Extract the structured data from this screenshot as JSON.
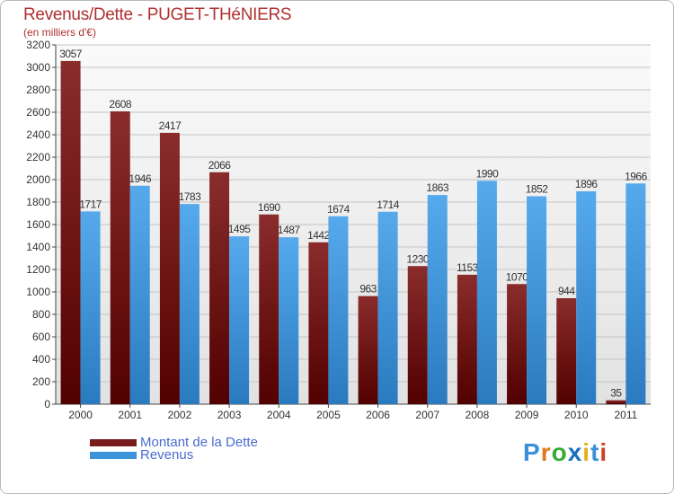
{
  "chart_data": {
    "type": "bar",
    "title": "Revenus/Dette - PUGET-THéNIERS",
    "subtitle": "(en milliers d'€)",
    "categories": [
      "2000",
      "2001",
      "2002",
      "2003",
      "2004",
      "2005",
      "2006",
      "2007",
      "2008",
      "2009",
      "2010",
      "2011"
    ],
    "series": [
      {
        "name": "Montant de la Dette",
        "color": "#7a1c1c",
        "values": [
          3057,
          2608,
          2417,
          2066,
          1690,
          1442,
          963,
          1230,
          1153,
          1070,
          944,
          35
        ]
      },
      {
        "name": "Revenus",
        "color": "#3e94d8",
        "values": [
          1717,
          1946,
          1783,
          1495,
          1487,
          1674,
          1714,
          1863,
          1990,
          1852,
          1896,
          1966
        ]
      }
    ],
    "ylim": [
      0,
      3200
    ],
    "yticks": [
      0,
      200,
      400,
      600,
      800,
      1000,
      1200,
      1400,
      1600,
      1800,
      2000,
      2200,
      2400,
      2600,
      2800,
      3000,
      3200
    ],
    "grid": true,
    "legend": "bottom-left"
  },
  "logo": {
    "letters": [
      "P",
      "r",
      "o",
      "x",
      "i",
      "t",
      "i"
    ],
    "colors": [
      "#3a8fd8",
      "#e07a20",
      "#3aaa35",
      "#1a6fc0",
      "#e0b020",
      "#3a8fd8",
      "#d04020"
    ]
  }
}
